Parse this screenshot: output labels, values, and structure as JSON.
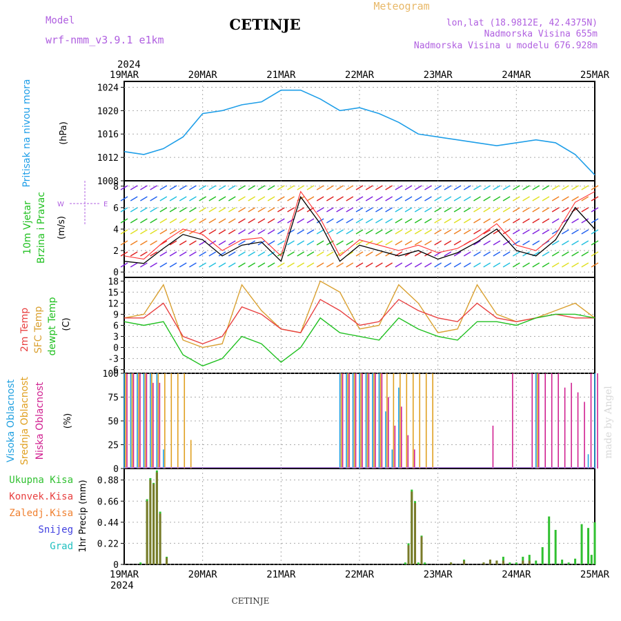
{
  "header": {
    "model_label": "Model",
    "model_name": "wrf-nmm_v3.9.1  e1km",
    "station": "CETINJE",
    "product": "Meteogram",
    "coords": "lon,lat (18.9812E, 42.4375N)",
    "elevation": "Nadmorska Visina 655m",
    "model_elevation": "Nadmorska Visina u modelu 676.928m",
    "watermark": "made by Angel",
    "footer_station": "CETINJE"
  },
  "time_axis": {
    "year": "2024",
    "labels": [
      "19MAR",
      "20MAR",
      "21MAR",
      "22MAR",
      "23MAR",
      "24MAR",
      "25MAR"
    ]
  },
  "colors": {
    "pressure": "#1e9ee8",
    "wind_speed": "#000000",
    "gust": "#ff3030",
    "t2m": "#e84040",
    "tsfc": "#d9a030",
    "dewpt": "#20c020",
    "high_cloud": "#20a0e0",
    "mid_cloud": "#e0a020",
    "low_cloud": "#d02090",
    "total_precip": "#30c030",
    "conv_precip": "#e84040",
    "frozen_precip": "#f08030",
    "snow": "#4040e0",
    "hail": "#20c0c0"
  },
  "panels": {
    "pressure": {
      "label": "Pritisak na nivou mora",
      "unit": "(hPa)",
      "ticks": [
        "1008",
        "1012",
        "1016",
        "1020",
        "1024"
      ]
    },
    "wind": {
      "label1": "10m Vjetar",
      "label2": "Brzina i Pravac",
      "unit": "(m/s)",
      "ticks": [
        "0",
        "2",
        "4",
        "6",
        "8"
      ],
      "compass_w": "W",
      "compass_e": "E"
    },
    "temp": {
      "label_t2m": "2m Temp",
      "label_tsfc": "SFC Temp",
      "label_dew": "dewpt Temp",
      "unit": "(C)",
      "ticks": [
        "-6",
        "-3",
        "0",
        "3",
        "6",
        "9",
        "12",
        "15",
        "18"
      ]
    },
    "cloud": {
      "label_high": "Visoka Oblacnost",
      "label_mid": "Srednja Oblacnost",
      "label_low": "Niska Oblacnost",
      "unit": "(%)",
      "ticks": [
        "0",
        "25",
        "50",
        "75",
        "100"
      ]
    },
    "precip": {
      "legend": [
        "Ukupna Kisa",
        "Konvek.Kisa",
        "Zaledj.Kisa",
        "Snijeg",
        "Grad"
      ],
      "ylabel": "1hr Precip (mm)",
      "ticks": [
        "0",
        "0.22",
        "0.44",
        "0.66",
        "0.88"
      ]
    }
  },
  "chart_data": [
    {
      "type": "line",
      "title": "",
      "ylabel": "Pritisak na nivou mora (hPa)",
      "ylim": [
        1008,
        1025
      ],
      "grid": true,
      "x_hours": [
        0,
        6,
        12,
        18,
        24,
        30,
        36,
        42,
        48,
        54,
        60,
        66,
        72,
        78,
        84,
        90,
        96,
        102,
        108,
        114,
        120,
        126,
        132,
        138,
        144
      ],
      "series": [
        {
          "name": "Pritisak na nivou mora",
          "values": [
            1013,
            1012.5,
            1013.5,
            1015.5,
            1019.5,
            1020,
            1021,
            1021.5,
            1023.5,
            1023.5,
            1022,
            1020,
            1020.5,
            1019.5,
            1018,
            1016,
            1015.5,
            1015,
            1014.5,
            1014,
            1014.5,
            1015,
            1014.5,
            1012.5,
            1009
          ]
        }
      ]
    },
    {
      "type": "line",
      "title": "",
      "ylabel": "10m Vjetar Brzina i Pravac (m/s)",
      "ylim": [
        -0.5,
        8.5
      ],
      "grid": true,
      "x_hours": [
        0,
        6,
        12,
        18,
        24,
        30,
        36,
        42,
        48,
        54,
        60,
        66,
        72,
        78,
        84,
        90,
        96,
        102,
        108,
        114,
        120,
        126,
        132,
        138,
        144
      ],
      "series": [
        {
          "name": "Brzina",
          "values": [
            1.0,
            0.8,
            2.2,
            3.5,
            3.0,
            1.5,
            2.5,
            2.8,
            1.0,
            7.0,
            4.5,
            1.0,
            2.5,
            2.0,
            1.5,
            2.0,
            1.2,
            1.8,
            2.8,
            4.0,
            2.0,
            1.5,
            3.0,
            6.0,
            4.0
          ]
        },
        {
          "name": "Udari",
          "values": [
            1.5,
            1.2,
            2.8,
            4.0,
            3.5,
            2.0,
            3.0,
            3.2,
            1.5,
            7.5,
            5.0,
            1.5,
            3.0,
            2.5,
            2.0,
            2.5,
            1.8,
            2.2,
            3.2,
            4.5,
            2.5,
            2.0,
            3.5,
            6.5,
            7.5
          ]
        }
      ]
    },
    {
      "type": "line",
      "title": "",
      "ylabel": "Temp (C)",
      "ylim": [
        -7,
        19
      ],
      "grid": true,
      "x_hours": [
        0,
        6,
        12,
        18,
        24,
        30,
        36,
        42,
        48,
        54,
        60,
        66,
        72,
        78,
        84,
        90,
        96,
        102,
        108,
        114,
        120,
        126,
        132,
        138,
        144
      ],
      "series": [
        {
          "name": "2m Temp",
          "values": [
            8,
            8,
            12,
            3,
            1,
            3,
            11,
            9,
            5,
            4,
            13,
            10,
            6,
            7,
            13,
            10,
            8,
            7,
            12,
            8,
            7,
            8,
            9,
            8,
            8
          ]
        },
        {
          "name": "SFC Temp",
          "values": [
            8,
            9,
            17,
            2,
            0,
            1,
            17,
            10,
            5,
            4,
            18,
            15,
            5,
            6,
            17,
            12,
            4,
            5,
            17,
            9,
            7,
            8,
            10,
            12,
            8
          ]
        },
        {
          "name": "dewpt Temp",
          "values": [
            7,
            6,
            7,
            -2,
            -5,
            -3,
            3,
            1,
            -4,
            0,
            8,
            4,
            3,
            2,
            8,
            5,
            3,
            2,
            7,
            7,
            6,
            8,
            9,
            9,
            8
          ]
        }
      ]
    },
    {
      "type": "bar",
      "title": "",
      "ylabel": "Oblacnost (%)",
      "ylim": [
        0,
        100
      ],
      "grid": true,
      "x_hours": [
        0,
        2,
        4,
        6,
        8,
        10,
        12,
        14,
        16,
        18,
        20,
        66,
        68,
        70,
        72,
        74,
        76,
        78,
        80,
        82,
        84,
        86,
        88,
        90,
        92,
        94,
        112,
        118,
        124,
        126,
        128,
        130,
        132,
        134,
        136,
        138,
        140,
        142,
        144
      ],
      "series": [
        {
          "name": "Visoka Oblacnost",
          "values": [
            100,
            100,
            100,
            100,
            100,
            100,
            20,
            0,
            0,
            0,
            0,
            100,
            100,
            100,
            100,
            100,
            100,
            100,
            60,
            20,
            85,
            0,
            0,
            0,
            0,
            0,
            0,
            0,
            0,
            100,
            0,
            0,
            0,
            0,
            0,
            0,
            0,
            15,
            100
          ]
        },
        {
          "name": "Srednja Oblacnost",
          "values": [
            100,
            100,
            100,
            100,
            100,
            100,
            100,
            100,
            100,
            100,
            30,
            100,
            100,
            100,
            100,
            100,
            100,
            100,
            100,
            100,
            100,
            100,
            100,
            100,
            100,
            100,
            0,
            0,
            0,
            100,
            0,
            0,
            0,
            0,
            0,
            0,
            0,
            0,
            0
          ]
        },
        {
          "name": "Niska Oblacnost",
          "values": [
            100,
            100,
            100,
            100,
            90,
            90,
            0,
            0,
            0,
            0,
            0,
            100,
            100,
            100,
            100,
            100,
            100,
            100,
            75,
            45,
            65,
            35,
            20,
            0,
            0,
            0,
            45,
            100,
            100,
            100,
            100,
            100,
            100,
            85,
            90,
            80,
            70,
            100,
            100
          ]
        }
      ]
    },
    {
      "type": "bar",
      "title": "",
      "ylabel": "1hr Precip (mm)",
      "ylim": [
        0,
        1.0
      ],
      "grid": true,
      "x_hours": [
        5,
        6,
        7,
        8,
        9,
        10,
        11,
        12,
        13,
        14,
        15,
        16,
        86,
        87,
        88,
        89,
        90,
        91,
        92,
        100,
        104,
        110,
        112,
        114,
        116,
        118,
        120,
        122,
        124,
        126,
        128,
        130,
        132,
        134,
        136,
        138,
        140,
        142,
        143,
        144
      ],
      "series": [
        {
          "name": "Ukupna Kisa",
          "values": [
            0.02,
            0.0,
            0.68,
            0.9,
            0.85,
            0.98,
            0.55,
            0.0,
            0.08,
            0.0,
            0.0,
            0.0,
            0.02,
            0.22,
            0.78,
            0.66,
            0.02,
            0.3,
            0.02,
            0.02,
            0.05,
            0.02,
            0.05,
            0.04,
            0.08,
            0.02,
            0.02,
            0.08,
            0.1,
            0.04,
            0.18,
            0.5,
            0.36,
            0.05,
            0.02,
            0.06,
            0.42,
            0.38,
            0.1,
            0.44
          ]
        },
        {
          "name": "Konvek.Kisa",
          "values": [
            0.0,
            0.0,
            0.66,
            0.88,
            0.84,
            0.96,
            0.53,
            0.0,
            0.07,
            0.0,
            0.0,
            0.0,
            0.0,
            0.2,
            0.76,
            0.64,
            0.0,
            0.29,
            0.0,
            0.02,
            0.04,
            0.02,
            0.05,
            0.04,
            0.04,
            0.0,
            0.0,
            0.04,
            0.04,
            0.0,
            0.0,
            0.0,
            0.0,
            0.0,
            0.0,
            0.0,
            0.0,
            0.0,
            0.0,
            0.0
          ]
        }
      ]
    }
  ]
}
